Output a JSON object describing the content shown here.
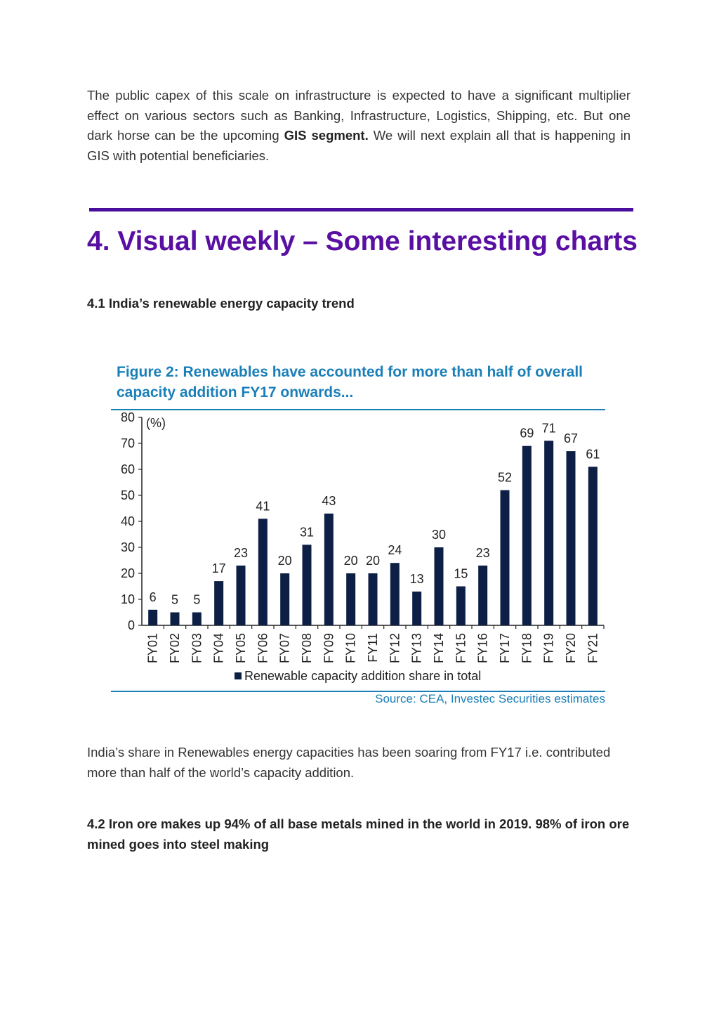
{
  "intro": {
    "text_before": "The public capex of this scale on infrastructure is expected to have a significant multiplier effect on various sectors such as Banking, Infrastructure, Logistics, Shipping, etc. But one dark horse can be the upcoming ",
    "bold": "GIS segment.",
    "text_after": " We will next explain all that is happening in GIS with potential beneficiaries."
  },
  "section": {
    "title": "4. Visual weekly – Some interesting charts",
    "accent_color": "#5a0fa3"
  },
  "sub1": {
    "heading": "4.1 India’s renewable energy capacity trend"
  },
  "figure": {
    "title_line1": "Figure 2: Renewables have accounted for more than half of overall",
    "title_line2": "capacity addition FY17 onwards...",
    "unit": "(%)",
    "source": "Source: CEA, Investec Securities estimates",
    "bar_color": "#0d1f45",
    "accent_color": "#1a7fb8"
  },
  "chart_data": {
    "type": "bar",
    "categories": [
      "FY01",
      "FY02",
      "FY03",
      "FY04",
      "FY05",
      "FY06",
      "FY07",
      "FY08",
      "FY09",
      "FY10",
      "FY11",
      "FY12",
      "FY13",
      "FY14",
      "FY15",
      "FY16",
      "FY17",
      "FY18",
      "FY19",
      "FY20",
      "FY21"
    ],
    "series": [
      {
        "name": "Renewable capacity addition share in total",
        "values": [
          6,
          5,
          5,
          17,
          23,
          41,
          20,
          31,
          43,
          20,
          20,
          24,
          13,
          30,
          15,
          23,
          52,
          69,
          71,
          67,
          61
        ]
      }
    ],
    "value_labels": [
      "6",
      "5",
      "5",
      "17",
      "23",
      "41",
      "20",
      "31",
      "43",
      "20",
      "20",
      "24",
      "13",
      "30",
      "15",
      "23",
      "52",
      "69",
      "71",
      "67",
      "61"
    ],
    "ylim": [
      0,
      80
    ],
    "yticks": [
      "0",
      "10",
      "20",
      "30",
      "40",
      "50",
      "60",
      "70",
      "80"
    ],
    "legend": "bottom",
    "grid": false
  },
  "after": {
    "text": "India’s share in Renewables energy capacities has been soaring from FY17 i.e. contributed more than half of the world’s capacity addition."
  },
  "sub2": {
    "heading": "4.2 Iron ore makes up 94% of all base metals mined in the world in 2019. 98% of iron ore mined goes into steel making"
  }
}
